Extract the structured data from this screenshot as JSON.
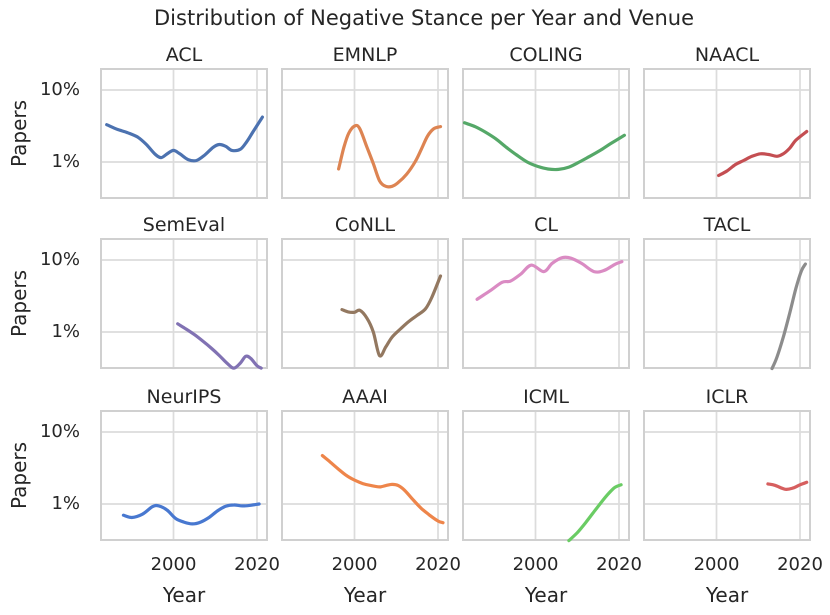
{
  "title": "Distribution of Negative Stance per Year and Venue",
  "axes": {
    "x_label": "Year",
    "y_label": "Papers",
    "x_tick_labels": [
      "2000",
      "2020"
    ],
    "x_tick_years": [
      2000,
      2020
    ],
    "y_tick_labels": [
      "10%",
      "1%"
    ],
    "y_tick_values_percent": [
      10,
      1
    ],
    "y_scale": "log",
    "grid": true
  },
  "style_colors": {
    "background": "#ffffff",
    "grid_line": "#dcdcdc",
    "plot_border": "#d0d0d0",
    "text": "#262626"
  },
  "chart_data": {
    "type": "line",
    "title": "Distribution of Negative Stance per Year and Venue",
    "faceted_by": "Venue",
    "layout": {
      "rows": 3,
      "cols": 4,
      "shared_x": true,
      "shared_y": true,
      "legend": "none"
    },
    "xlabel": "Year",
    "ylabel": "Papers",
    "xlim": [
      1982.4,
      2022.6
    ],
    "ylim_percent": [
      0.31,
      20
    ],
    "yscale": "log",
    "x_ticks": [
      2000,
      2020
    ],
    "y_ticks_percent": [
      10,
      1
    ],
    "facets": [
      {
        "venue": "ACL",
        "color": "#4c72b0",
        "points": [
          [
            1984,
            3.3
          ],
          [
            1986.5,
            2.85
          ],
          [
            1989,
            2.55
          ],
          [
            1991.5,
            2.2
          ],
          [
            1993.5,
            1.75
          ],
          [
            1995.5,
            1.3
          ],
          [
            1997,
            1.15
          ],
          [
            1998.5,
            1.3
          ],
          [
            2000,
            1.45
          ],
          [
            2001.5,
            1.3
          ],
          [
            2003.5,
            1.08
          ],
          [
            2005.5,
            1.05
          ],
          [
            2007.5,
            1.25
          ],
          [
            2009.5,
            1.6
          ],
          [
            2011,
            1.75
          ],
          [
            2012.5,
            1.65
          ],
          [
            2014,
            1.45
          ],
          [
            2016,
            1.5
          ],
          [
            2017.5,
            1.9
          ],
          [
            2019,
            2.6
          ],
          [
            2021.3,
            4.2
          ]
        ]
      },
      {
        "venue": "EMNLP",
        "color": "#dd8452",
        "points": [
          [
            1996.2,
            0.8
          ],
          [
            1997.4,
            1.55
          ],
          [
            1998.6,
            2.5
          ],
          [
            2000,
            3.15
          ],
          [
            2001.2,
            2.95
          ],
          [
            2003,
            1.6
          ],
          [
            2004.5,
            0.95
          ],
          [
            2006,
            0.55
          ],
          [
            2007.5,
            0.46
          ],
          [
            2009,
            0.46
          ],
          [
            2010.5,
            0.52
          ],
          [
            2012.5,
            0.68
          ],
          [
            2014.5,
            1.0
          ],
          [
            2016,
            1.5
          ],
          [
            2017.5,
            2.3
          ],
          [
            2019,
            2.9
          ],
          [
            2020.6,
            3.1
          ]
        ]
      },
      {
        "venue": "COLING",
        "color": "#55a868",
        "points": [
          [
            1983,
            3.5
          ],
          [
            1985.5,
            3.1
          ],
          [
            1988,
            2.6
          ],
          [
            1990.5,
            2.1
          ],
          [
            1993,
            1.6
          ],
          [
            1995.5,
            1.25
          ],
          [
            1998,
            1.0
          ],
          [
            2000.5,
            0.87
          ],
          [
            2003,
            0.8
          ],
          [
            2005.5,
            0.79
          ],
          [
            2008,
            0.85
          ],
          [
            2010.5,
            1.0
          ],
          [
            2013,
            1.2
          ],
          [
            2015.5,
            1.45
          ],
          [
            2018,
            1.8
          ],
          [
            2021.3,
            2.35
          ]
        ]
      },
      {
        "venue": "NAACL",
        "color": "#c44e52",
        "points": [
          [
            2000.5,
            0.65
          ],
          [
            2002.5,
            0.75
          ],
          [
            2004.5,
            0.92
          ],
          [
            2006.5,
            1.05
          ],
          [
            2008.5,
            1.2
          ],
          [
            2010.5,
            1.3
          ],
          [
            2012.5,
            1.27
          ],
          [
            2014.5,
            1.2
          ],
          [
            2016,
            1.3
          ],
          [
            2017.5,
            1.55
          ],
          [
            2019,
            2.0
          ],
          [
            2021.6,
            2.65
          ]
        ]
      },
      {
        "venue": "SemEval",
        "color": "#8172b3",
        "points": [
          [
            2001,
            1.3
          ],
          [
            2003,
            1.1
          ],
          [
            2005,
            0.92
          ],
          [
            2007,
            0.75
          ],
          [
            2009,
            0.6
          ],
          [
            2011,
            0.47
          ],
          [
            2013,
            0.36
          ],
          [
            2014.5,
            0.315
          ],
          [
            2016,
            0.37
          ],
          [
            2017.3,
            0.46
          ],
          [
            2018.5,
            0.43
          ],
          [
            2020,
            0.34
          ],
          [
            2021,
            0.315
          ]
        ]
      },
      {
        "venue": "CoNLL",
        "color": "#937860",
        "points": [
          [
            1997,
            2.05
          ],
          [
            1998.5,
            1.9
          ],
          [
            2000,
            1.88
          ],
          [
            2001.3,
            2.0
          ],
          [
            2003,
            1.55
          ],
          [
            2004.5,
            1.0
          ],
          [
            2006,
            0.47
          ],
          [
            2007.5,
            0.62
          ],
          [
            2009,
            0.85
          ],
          [
            2011,
            1.1
          ],
          [
            2013,
            1.4
          ],
          [
            2015,
            1.7
          ],
          [
            2017,
            2.1
          ],
          [
            2018.5,
            3.0
          ],
          [
            2020.6,
            6.0
          ]
        ]
      },
      {
        "venue": "CL",
        "color": "#da8bc3",
        "points": [
          [
            1986,
            2.85
          ],
          [
            1989,
            3.7
          ],
          [
            1992,
            4.9
          ],
          [
            1994,
            5.1
          ],
          [
            1996.5,
            6.4
          ],
          [
            1999,
            8.5
          ],
          [
            2002,
            6.9
          ],
          [
            2004,
            9.0
          ],
          [
            2006.5,
            10.8
          ],
          [
            2008.5,
            10.6
          ],
          [
            2011,
            9.0
          ],
          [
            2014,
            6.9
          ],
          [
            2016.5,
            7.2
          ],
          [
            2019,
            8.7
          ],
          [
            2020.7,
            9.5
          ]
        ]
      },
      {
        "venue": "TACL",
        "color": "#8c8c8c",
        "points": [
          [
            2013.3,
            0.31
          ],
          [
            2014.5,
            0.45
          ],
          [
            2016,
            0.85
          ],
          [
            2017.5,
            1.8
          ],
          [
            2019,
            4.0
          ],
          [
            2020.3,
            7.0
          ],
          [
            2021.3,
            8.8
          ]
        ]
      },
      {
        "venue": "NeurIPS",
        "color": "#4878d0",
        "points": [
          [
            1988,
            0.7
          ],
          [
            1990,
            0.65
          ],
          [
            1992.5,
            0.72
          ],
          [
            1995,
            0.92
          ],
          [
            1996.5,
            0.94
          ],
          [
            1998.5,
            0.82
          ],
          [
            2000.5,
            0.63
          ],
          [
            2002.5,
            0.56
          ],
          [
            2004.5,
            0.53
          ],
          [
            2006.5,
            0.56
          ],
          [
            2008.5,
            0.65
          ],
          [
            2010.5,
            0.8
          ],
          [
            2012.5,
            0.93
          ],
          [
            2014.5,
            0.97
          ],
          [
            2016.5,
            0.94
          ],
          [
            2018.5,
            0.96
          ],
          [
            2020.5,
            1.0
          ]
        ]
      },
      {
        "venue": "AAAI",
        "color": "#ee854a",
        "points": [
          [
            1992.3,
            4.7
          ],
          [
            1994,
            3.9
          ],
          [
            1996,
            3.1
          ],
          [
            1998,
            2.5
          ],
          [
            2000,
            2.15
          ],
          [
            2002,
            1.92
          ],
          [
            2004,
            1.8
          ],
          [
            2006,
            1.73
          ],
          [
            2007.5,
            1.8
          ],
          [
            2009,
            1.87
          ],
          [
            2010.5,
            1.8
          ],
          [
            2012,
            1.55
          ],
          [
            2014,
            1.15
          ],
          [
            2016,
            0.87
          ],
          [
            2018,
            0.7
          ],
          [
            2020,
            0.58
          ],
          [
            2021.2,
            0.55
          ]
        ]
      },
      {
        "venue": "ICML",
        "color": "#6acc64",
        "points": [
          [
            2008,
            0.31
          ],
          [
            2010,
            0.4
          ],
          [
            2012,
            0.55
          ],
          [
            2014,
            0.78
          ],
          [
            2016,
            1.1
          ],
          [
            2017.5,
            1.4
          ],
          [
            2019,
            1.7
          ],
          [
            2020.5,
            1.85
          ]
        ]
      },
      {
        "venue": "ICLR",
        "color": "#d65f5f",
        "points": [
          [
            2012.3,
            1.9
          ],
          [
            2014,
            1.82
          ],
          [
            2016.5,
            1.6
          ],
          [
            2018.5,
            1.68
          ],
          [
            2020,
            1.85
          ],
          [
            2021.6,
            2.0
          ]
        ]
      }
    ]
  }
}
